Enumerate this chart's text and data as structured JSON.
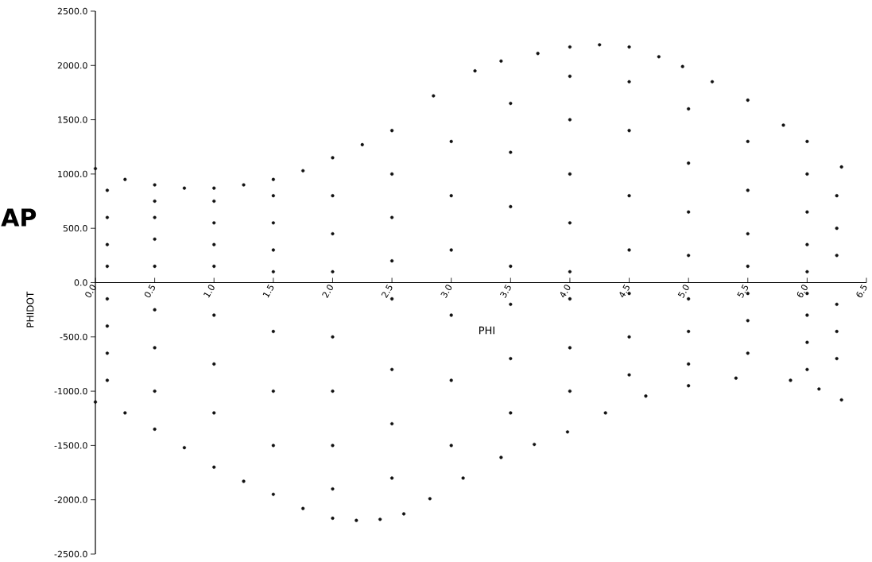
{
  "chart_data": {
    "type": "scatter",
    "xlabel": "PHI",
    "ylabel": "PHIDOT",
    "annotations": [
      "AP"
    ],
    "color": "#111111",
    "xlim": [
      0,
      6.5
    ],
    "ylim": [
      -2500,
      2500
    ],
    "xticks": [
      {
        "value": 0,
        "label": "0.0"
      },
      {
        "value": 0.5,
        "label": "0.5"
      },
      {
        "value": 1,
        "label": "1.0"
      },
      {
        "value": 1.5,
        "label": "1.5"
      },
      {
        "value": 2,
        "label": "2.0"
      },
      {
        "value": 2.5,
        "label": "2.5"
      },
      {
        "value": 3,
        "label": "3.0"
      },
      {
        "value": 3.5,
        "label": "3.5"
      },
      {
        "value": 4,
        "label": "4.0"
      },
      {
        "value": 4.5,
        "label": "4.5"
      },
      {
        "value": 5,
        "label": "5.0"
      },
      {
        "value": 5.5,
        "label": "5.5"
      },
      {
        "value": 6,
        "label": "6.0"
      },
      {
        "value": 6.5,
        "label": "6.5"
      }
    ],
    "yticks": [
      {
        "value": -2500,
        "label": "-2500.0"
      },
      {
        "value": -2000,
        "label": "-2000.0"
      },
      {
        "value": -1500,
        "label": "-1500.0"
      },
      {
        "value": -1000,
        "label": "-1000.0"
      },
      {
        "value": -500,
        "label": "-500.0"
      },
      {
        "value": 0,
        "label": "0.0"
      },
      {
        "value": 500,
        "label": "500.0"
      },
      {
        "value": 1000,
        "label": "1000.0"
      },
      {
        "value": 1500,
        "label": "1500.0"
      },
      {
        "value": 2000,
        "label": "2000.0"
      },
      {
        "value": 2500,
        "label": "2500.0"
      }
    ],
    "x": [
      0.1,
      0.1,
      0.1,
      0.1,
      0.5,
      0.5,
      0.5,
      0.5,
      1.0,
      1.0,
      1.0,
      1.0,
      1.5,
      1.5,
      1.5,
      1.5,
      2.0,
      2.0,
      2.0,
      2.5,
      2.5,
      2.5,
      3.0,
      3.0,
      3.0,
      3.5,
      3.5,
      3.5,
      3.5,
      4.0,
      4.0,
      4.0,
      4.0,
      4.0,
      4.5,
      4.5,
      4.5,
      4.5,
      5.0,
      5.0,
      5.0,
      5.0,
      5.5,
      5.5,
      5.5,
      5.5,
      6.0,
      6.0,
      6.0,
      6.0,
      6.25,
      6.25,
      6.25,
      0.1,
      0.1,
      0.1,
      0.1,
      0.5,
      0.5,
      0.5,
      1.0,
      1.0,
      1.0,
      1.5,
      1.5,
      1.5,
      2.0,
      2.0,
      2.0,
      2.0,
      2.5,
      2.5,
      2.5,
      2.5,
      3.0,
      3.0,
      3.0,
      3.5,
      3.5,
      3.5,
      4.0,
      4.0,
      4.0,
      4.5,
      4.5,
      4.5,
      5.0,
      5.0,
      5.0,
      5.5,
      5.5,
      5.5,
      6.0,
      6.0,
      6.0,
      6.0,
      6.25,
      6.25,
      6.25,
      0.0,
      0.25,
      0.5,
      0.75,
      1.0,
      1.25,
      1.5,
      1.75,
      2.0,
      2.25,
      2.5,
      2.85,
      3.2,
      3.42,
      3.73,
      4.0,
      4.25,
      4.5,
      4.75,
      4.95,
      5.2,
      5.5,
      5.8,
      6.0,
      6.29,
      0.0,
      0.25,
      0.5,
      0.75,
      1.0,
      1.25,
      1.5,
      1.75,
      2.0,
      2.2,
      2.4,
      2.6,
      2.82,
      3.1,
      3.42,
      3.7,
      3.98,
      4.3,
      4.64,
      5.0,
      5.4,
      5.86,
      6.1,
      6.29
    ],
    "values": [
      150,
      350,
      600,
      850,
      150,
      400,
      600,
      750,
      150,
      350,
      550,
      750,
      100,
      300,
      550,
      800,
      100,
      450,
      800,
      200,
      600,
      1000,
      300,
      800,
      1300,
      150,
      700,
      1200,
      1650,
      100,
      550,
      1000,
      1500,
      1900,
      300,
      800,
      1400,
      1850,
      250,
      650,
      1100,
      1600,
      150,
      450,
      850,
      1300,
      100,
      350,
      650,
      1000,
      250,
      500,
      800,
      -150,
      -400,
      -650,
      -900,
      -250,
      -600,
      -1000,
      -300,
      -750,
      -1200,
      -450,
      -1000,
      -1500,
      -500,
      -1000,
      -1500,
      -1900,
      -150,
      -800,
      -1300,
      -1800,
      -300,
      -900,
      -1500,
      -200,
      -700,
      -1200,
      -150,
      -600,
      -1000,
      -100,
      -500,
      -850,
      -150,
      -450,
      -750,
      -100,
      -350,
      -650,
      -100,
      -300,
      -550,
      -800,
      -200,
      -450,
      -700,
      1050,
      950,
      900,
      870,
      870,
      900,
      950,
      1030,
      1150,
      1270,
      1400,
      1720,
      1950,
      2040,
      2110,
      2170,
      2190,
      2170,
      2080,
      1990,
      1850,
      1680,
      1450,
      1300,
      1065,
      -1100,
      -1200,
      -1350,
      -1520,
      -1700,
      -1830,
      -1950,
      -2080,
      -2170,
      -2190,
      -2180,
      -2130,
      -1990,
      -1800,
      -1610,
      -1490,
      -1375,
      -1200,
      -1045,
      -950,
      -880,
      -900,
      -980,
      -1080
    ]
  }
}
